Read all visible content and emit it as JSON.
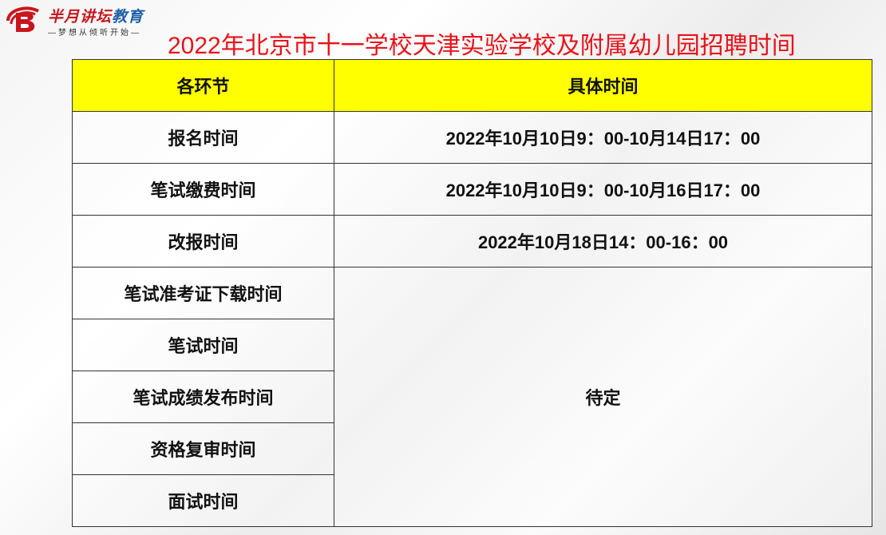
{
  "logo": {
    "name_red": "半月讲坛",
    "name_blue": "教育",
    "tagline": "—梦想从倾听开始—"
  },
  "title": "2022年北京市十一学校天津实验学校及附属幼儿园招聘时间",
  "colors": {
    "title": "#e8131a",
    "header_bg": "#ffff00",
    "logo_red": "#c8161d",
    "logo_blue": "#1e5fa8"
  },
  "table": {
    "headers": [
      "各环节",
      "具体时间"
    ],
    "rows": [
      {
        "stage": "报名时间",
        "time": "2022年10月10日9：00-10月14日17：00"
      },
      {
        "stage": "笔试缴费时间",
        "time": "2022年10月10日9：00-10月16日17：00"
      },
      {
        "stage": "改报时间",
        "time": "2022年10月18日14：00-16：00"
      },
      {
        "stage": "笔试准考证下载时间"
      },
      {
        "stage": "笔试时间"
      },
      {
        "stage": "笔试成绩发布时间"
      },
      {
        "stage": "资格复审时间"
      },
      {
        "stage": "面试时间"
      }
    ],
    "merged_time": "待定"
  }
}
